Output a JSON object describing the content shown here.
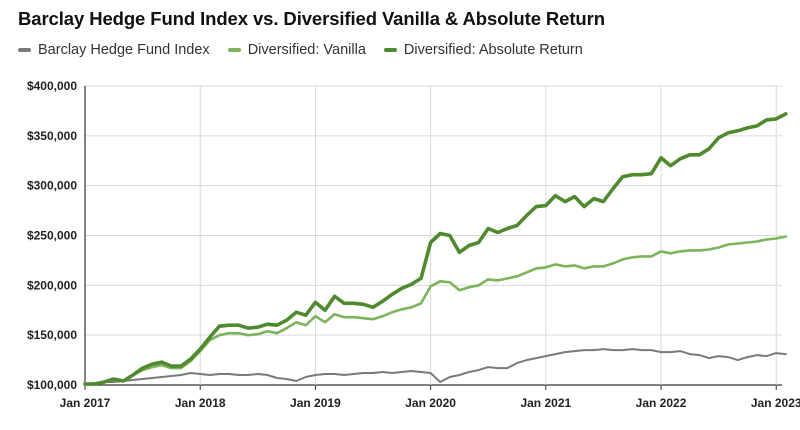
{
  "chart_data": {
    "type": "line",
    "title": "Barclay Hedge Fund Index vs. Diversified Vanilla & Absolute Return",
    "xlabel": "",
    "ylabel": "",
    "ylim": [
      100000,
      400000
    ],
    "x_start": "2017-01",
    "x_ticks": [
      "Jan 2017",
      "Jan 2018",
      "Jan 2019",
      "Jan 2020",
      "Jan 2021",
      "Jan 2022",
      "Jan 2023"
    ],
    "y_ticks": [
      "$100,000",
      "$150,000",
      "$200,000",
      "$250,000",
      "$300,000",
      "$350,000",
      "$400,000"
    ],
    "y_tick_values": [
      100000,
      150000,
      200000,
      250000,
      300000,
      350000,
      400000
    ],
    "grid": true,
    "legend_position": "top-left",
    "series": [
      {
        "name": "Barclay Hedge Fund Index",
        "color": "#7a7a7a",
        "values": [
          101000,
          102000,
          103000,
          103000,
          104000,
          105000,
          106000,
          107000,
          108000,
          109000,
          110000,
          112000,
          111000,
          110000,
          111000,
          111000,
          110000,
          110000,
          111000,
          110000,
          107000,
          106000,
          104000,
          108000,
          110000,
          111000,
          111000,
          110000,
          111000,
          112000,
          112000,
          113000,
          112000,
          113000,
          114000,
          113000,
          112000,
          103000,
          108000,
          110000,
          113000,
          115000,
          118000,
          117000,
          117000,
          122000,
          125000,
          127000,
          129000,
          131000,
          133000,
          134000,
          135000,
          135000,
          136000,
          135000,
          135000,
          136000,
          135000,
          135000,
          133000,
          133000,
          134000,
          131000,
          130000,
          127000,
          129000,
          128000,
          125000,
          128000,
          130000,
          129000,
          132000,
          131000
        ]
      },
      {
        "name": "Diversified: Vanilla",
        "color": "#7db35a",
        "values": [
          100000,
          101000,
          103000,
          105000,
          104000,
          110000,
          115000,
          118000,
          120000,
          117000,
          117000,
          124000,
          134000,
          145000,
          150000,
          152000,
          152000,
          150000,
          151000,
          154000,
          152000,
          157000,
          163000,
          160000,
          169000,
          163000,
          171000,
          168000,
          168000,
          167000,
          166000,
          169000,
          173000,
          176000,
          178000,
          182000,
          199000,
          204000,
          203000,
          195000,
          198000,
          200000,
          206000,
          205000,
          207000,
          209000,
          213000,
          217000,
          218000,
          221000,
          219000,
          220000,
          217000,
          219000,
          219000,
          222000,
          226000,
          228000,
          229000,
          229000,
          234000,
          232000,
          234000,
          235000,
          235000,
          236000,
          238000,
          241000,
          242000,
          243000,
          244000,
          246000,
          247000,
          249000
        ]
      },
      {
        "name": "Diversified: Absolute Return",
        "color": "#4f8a2e",
        "values": [
          101000,
          101000,
          103000,
          106000,
          104000,
          110000,
          117000,
          121000,
          123000,
          119000,
          119000,
          126000,
          136000,
          148000,
          159000,
          160000,
          160000,
          157000,
          158000,
          161000,
          160000,
          165000,
          173000,
          170000,
          183000,
          175000,
          189000,
          182000,
          182000,
          181000,
          178000,
          184000,
          191000,
          197000,
          201000,
          207000,
          243000,
          252000,
          250000,
          233000,
          240000,
          243000,
          257000,
          253000,
          257000,
          260000,
          270000,
          279000,
          280000,
          290000,
          284000,
          289000,
          279000,
          287000,
          284000,
          297000,
          309000,
          311000,
          311000,
          312000,
          328000,
          320000,
          327000,
          331000,
          331000,
          337000,
          348000,
          353000,
          355000,
          358000,
          360000,
          366000,
          367000,
          372000
        ]
      }
    ]
  }
}
